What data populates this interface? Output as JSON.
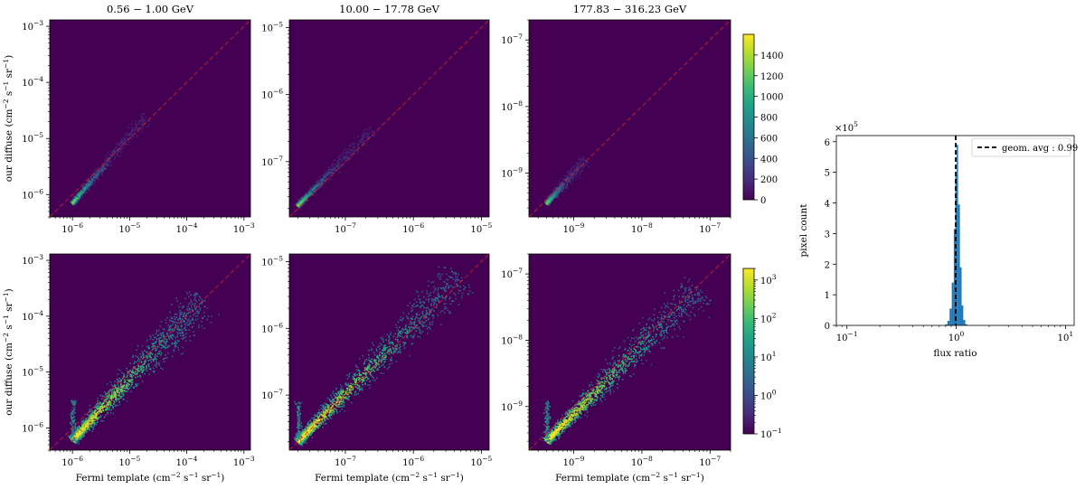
{
  "colors": {
    "background": "#440154",
    "diagonal": "#d62728",
    "viridis": [
      "#440154",
      "#482878",
      "#3e4a89",
      "#31688e",
      "#26828e",
      "#1f9e89",
      "#35b779",
      "#6ece58",
      "#b5de2b",
      "#fde725"
    ],
    "hist_bar": "#1f77b4",
    "avg_line": "#000000"
  },
  "chart_data": [
    {
      "type": "heatmap",
      "name": "top-left",
      "title": "0.56 − 1.00 GeV",
      "ylabel": "our diffuse (cm⁻² s⁻¹ sr⁻¹)",
      "xlabel": "",
      "log_x": true,
      "log_y": true,
      "x_ticks": [
        "10^-6",
        "10^-5",
        "10^-4",
        "10^-3"
      ],
      "y_ticks": [
        "10^-6",
        "10^-5",
        "10^-4",
        "10^-3"
      ],
      "xlim": [
        4e-07,
        0.0013
      ],
      "ylim": [
        4e-07,
        0.0013
      ],
      "data_start": [
        1e-06,
        7e-07
      ],
      "data_end": [
        2e-05,
        2.5e-05
      ],
      "color_scale": "linear"
    },
    {
      "type": "heatmap",
      "name": "top-middle",
      "title": "10.00 − 17.78 GeV",
      "ylabel": "",
      "xlabel": "",
      "log_x": true,
      "log_y": true,
      "x_ticks": [
        "10^-7",
        "10^-6",
        "10^-5"
      ],
      "y_ticks": [
        "10^-7",
        "10^-6",
        "10^-5"
      ],
      "xlim": [
        1.5e-08,
        1.3e-05
      ],
      "ylim": [
        1.5e-08,
        1.3e-05
      ],
      "data_start": [
        2e-08,
        2.2e-08
      ],
      "data_end": [
        2.5e-07,
        3e-07
      ],
      "color_scale": "linear"
    },
    {
      "type": "heatmap",
      "name": "top-right",
      "title": "177.83 − 316.23 GeV",
      "ylabel": "",
      "xlabel": "",
      "log_x": true,
      "log_y": true,
      "x_ticks": [
        "10^-9",
        "10^-8",
        "10^-7"
      ],
      "y_ticks": [
        "10^-9",
        "10^-8",
        "10^-7"
      ],
      "xlim": [
        2.2e-10,
        2e-07
      ],
      "ylim": [
        2.2e-10,
        2e-07
      ],
      "data_start": [
        4e-10,
        3.5e-10
      ],
      "data_end": [
        1.5e-09,
        1.6e-09
      ],
      "color_scale": "linear"
    },
    {
      "type": "heatmap",
      "name": "bottom-left",
      "title": "",
      "ylabel": "our diffuse (cm⁻² s⁻¹ sr⁻¹)",
      "xlabel": "Fermi template (cm⁻² s⁻¹ sr⁻¹)",
      "log_x": true,
      "log_y": true,
      "x_ticks": [
        "10^-6",
        "10^-5",
        "10^-4",
        "10^-3"
      ],
      "y_ticks": [
        "10^-6",
        "10^-5",
        "10^-4",
        "10^-3"
      ],
      "xlim": [
        4e-07,
        0.0013
      ],
      "ylim": [
        4e-07,
        0.0013
      ],
      "data_start": [
        1e-06,
        6e-07
      ],
      "data_end": [
        0.0002,
        0.0002
      ],
      "color_scale": "log"
    },
    {
      "type": "heatmap",
      "name": "bottom-middle",
      "title": "",
      "ylabel": "",
      "xlabel": "Fermi template (cm⁻² s⁻¹ sr⁻¹)",
      "log_x": true,
      "log_y": true,
      "x_ticks": [
        "10^-7",
        "10^-6",
        "10^-5"
      ],
      "y_ticks": [
        "10^-7",
        "10^-6",
        "10^-5"
      ],
      "xlim": [
        1.5e-08,
        1.3e-05
      ],
      "ylim": [
        1.5e-08,
        1.3e-05
      ],
      "data_start": [
        2e-08,
        2e-08
      ],
      "data_end": [
        5e-06,
        6e-06
      ],
      "color_scale": "log"
    },
    {
      "type": "heatmap",
      "name": "bottom-right",
      "title": "",
      "ylabel": "",
      "xlabel": "Fermi template (cm⁻² s⁻¹ sr⁻¹)",
      "log_x": true,
      "log_y": true,
      "x_ticks": [
        "10^-9",
        "10^-8",
        "10^-7"
      ],
      "y_ticks": [
        "10^-9",
        "10^-8",
        "10^-7"
      ],
      "xlim": [
        2.2e-10,
        2e-07
      ],
      "ylim": [
        2.2e-10,
        2e-07
      ],
      "data_start": [
        4e-10,
        3e-10
      ],
      "data_end": [
        7e-08,
        6e-08
      ],
      "color_scale": "log"
    },
    {
      "type": "colorbar",
      "name": "colorbar-top",
      "scale": "linear",
      "range": [
        0,
        1600
      ],
      "tick_values": [
        0,
        200,
        400,
        600,
        800,
        1000,
        1200,
        1400
      ],
      "tick_labels": [
        "0",
        "200",
        "400",
        "600",
        "800",
        "1000",
        "1200",
        "1400"
      ]
    },
    {
      "type": "colorbar",
      "name": "colorbar-bottom",
      "scale": "log",
      "range": [
        0.1,
        2000
      ],
      "tick_labels": [
        "10^-1",
        "10^0",
        "10^1",
        "10^2",
        "10^3"
      ]
    },
    {
      "type": "bar",
      "name": "flux-ratio-histogram",
      "xlabel": "flux ratio",
      "ylabel": "pixel count",
      "log_x": true,
      "xlim": [
        0.08,
        12
      ],
      "ylim": [
        0,
        620000
      ],
      "y_multiplier": "×10^5",
      "x_ticks": [
        "10^-1",
        "10^0",
        "10^1"
      ],
      "y_ticks": [
        "0",
        "1",
        "2",
        "3",
        "4",
        "5",
        "6"
      ],
      "bins": [
        [
          0.79,
          0.83,
          3000
        ],
        [
          0.83,
          0.87,
          15000
        ],
        [
          0.87,
          0.91,
          55000
        ],
        [
          0.91,
          0.95,
          140000
        ],
        [
          0.95,
          0.98,
          315000
        ],
        [
          0.98,
          1.01,
          490000
        ],
        [
          1.01,
          1.04,
          590000
        ],
        [
          1.04,
          1.08,
          395000
        ],
        [
          1.08,
          1.12,
          190000
        ],
        [
          1.12,
          1.16,
          65000
        ],
        [
          1.16,
          1.21,
          18000
        ],
        [
          1.21,
          1.26,
          4000
        ]
      ],
      "annotations": {
        "geom_avg": 0.99,
        "legend": "geom. avg : 0.99"
      }
    }
  ]
}
